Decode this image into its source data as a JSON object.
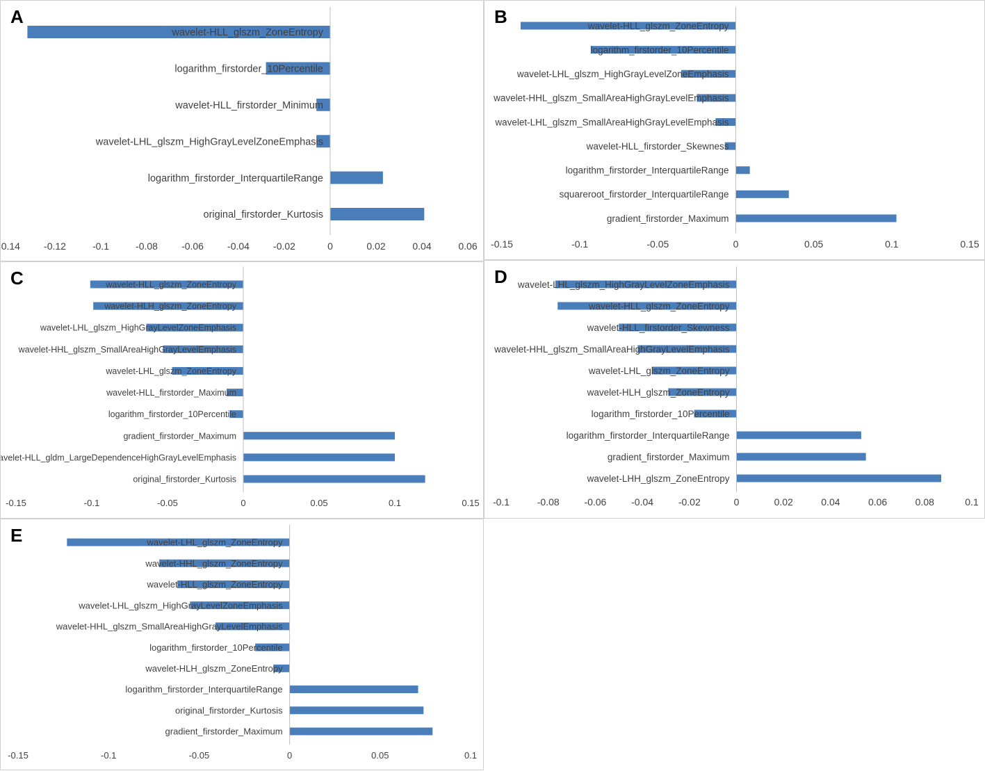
{
  "colors": {
    "bar": "#4a7ebb",
    "axis": "#bfbfbf",
    "text": "#404040"
  },
  "chart_data": [
    {
      "id": "A",
      "letter": "A",
      "type": "bar",
      "orientation": "horizontal",
      "xlim": [
        -0.14,
        0.06
      ],
      "xticks": [
        -0.14,
        -0.12,
        -0.1,
        -0.08,
        -0.06,
        -0.04,
        -0.02,
        0,
        0.02,
        0.04,
        0.06
      ],
      "tick_labels": [
        "-0.14",
        "-0.12",
        "-0.1",
        "-0.08",
        "-0.06",
        "-0.04",
        "-0.02",
        "0",
        "0.02",
        "0.04",
        "0.06"
      ],
      "categories": [
        "wavelet-HLL_glszm_ZoneEntropy",
        "logarithm_firstorder_10Percentile",
        "wavelet-HLL_firstorder_Minimum",
        "wavelet-LHL_glszm_HighGrayLevelZoneEmphasis",
        "logarithm_firstorder_InterquartileRange",
        "original_firstorder_Kurtosis"
      ],
      "values": [
        -0.132,
        -0.028,
        -0.006,
        -0.006,
        0.023,
        0.041
      ]
    },
    {
      "id": "B",
      "letter": "B",
      "type": "bar",
      "orientation": "horizontal",
      "xlim": [
        -0.15,
        0.15
      ],
      "xticks": [
        -0.15,
        -0.1,
        -0.05,
        0,
        0.05,
        0.1,
        0.15
      ],
      "tick_labels": [
        "-0.15",
        "-0.1",
        "-0.05",
        "0",
        "0.05",
        "0.1",
        "0.15"
      ],
      "categories": [
        "wavelet-HLL_glszm_ZoneEntropy",
        "logarithm_firstorder_10Percentile",
        "wavelet-LHL_glszm_HighGrayLevelZoneEmphasis",
        "wavelet-HHL_glszm_SmallAreaHighGrayLevelEmphasis",
        "wavelet-LHL_glszm_SmallAreaHighGrayLevelEmphasis",
        "wavelet-HLL_firstorder_Skewness",
        "logarithm_firstorder_InterquartileRange",
        "squareroot_firstorder_InterquartileRange",
        "gradient_firstorder_Maximum"
      ],
      "values": [
        -0.138,
        -0.093,
        -0.035,
        -0.025,
        -0.013,
        -0.007,
        0.009,
        0.034,
        0.103
      ]
    },
    {
      "id": "C",
      "letter": "C",
      "type": "bar",
      "orientation": "horizontal",
      "xlim": [
        -0.15,
        0.15
      ],
      "xticks": [
        -0.15,
        -0.1,
        -0.05,
        0,
        0.05,
        0.1,
        0.15
      ],
      "tick_labels": [
        "-0.15",
        "-0.1",
        "-0.05",
        "0",
        "0.05",
        "0.1",
        "0.15"
      ],
      "categories": [
        "wavelet-HLL_glszm_ZoneEntropy",
        "wavelet-HLH_glszm_ZoneEntropy",
        "wavelet-LHL_glszm_HighGrayLevelZoneEmphasis",
        "wavelet-HHL_glszm_SmallAreaHighGrayLevelEmphasis",
        "wavelet-LHL_glszm_ZoneEntropy",
        "wavelet-HLL_firstorder_Maximum",
        "logarithm_firstorder_10Percentile",
        "gradient_firstorder_Maximum",
        "wavelet-HLL_gldm_LargeDependenceHighGrayLevelEmphasis",
        "original_firstorder_Kurtosis"
      ],
      "values": [
        -0.101,
        -0.099,
        -0.064,
        -0.053,
        -0.047,
        -0.011,
        -0.009,
        0.1,
        0.1,
        0.12
      ]
    },
    {
      "id": "D",
      "letter": "D",
      "type": "bar",
      "orientation": "horizontal",
      "xlim": [
        -0.1,
        0.1
      ],
      "xticks": [
        -0.1,
        -0.08,
        -0.06,
        -0.04,
        -0.02,
        0,
        0.02,
        0.04,
        0.06,
        0.08,
        0.1
      ],
      "tick_labels": [
        "-0.1",
        "-0.08",
        "-0.06",
        "-0.04",
        "-0.02",
        "0",
        "0.02",
        "0.04",
        "0.06",
        "0.08",
        "0.1"
      ],
      "categories": [
        "wavelet-LHL_glszm_HighGrayLevelZoneEmphasis",
        "wavelet-HLL_glszm_ZoneEntropy",
        "wavelet-HLL_firstorder_Skewness",
        "wavelet-HHL_glszm_SmallAreaHighGrayLevelEmphasis",
        "wavelet-LHL_glszm_ZoneEntropy",
        "wavelet-HLH_glszm_ZoneEntropy",
        "logarithm_firstorder_10Percentile",
        "logarithm_firstorder_InterquartileRange",
        "gradient_firstorder_Maximum",
        "wavelet-LHH_glszm_ZoneEntropy"
      ],
      "values": [
        -0.077,
        -0.076,
        -0.05,
        -0.042,
        -0.036,
        -0.029,
        -0.018,
        0.053,
        0.055,
        0.087
      ]
    },
    {
      "id": "E",
      "letter": "E",
      "type": "bar",
      "orientation": "horizontal",
      "xlim": [
        -0.15,
        0.1
      ],
      "xticks": [
        -0.15,
        -0.1,
        -0.05,
        0,
        0.05,
        0.1
      ],
      "tick_labels": [
        "-0.15",
        "-0.1",
        "-0.05",
        "0",
        "0.05",
        "0.1"
      ],
      "categories": [
        "wavelet-LHL_glszm_ZoneEntropy",
        "wavelet-HHL_glszm_ZoneEntropy",
        "wavelet-HLL_glszm_ZoneEntropy",
        "wavelet-LHL_glszm_HighGrayLevelZoneEmphasis",
        "wavelet-HHL_glszm_SmallAreaHighGrayLevelEmphasis",
        "logarithm_firstorder_10Percentile",
        "wavelet-HLH_glszm_ZoneEntropy",
        "logarithm_firstorder_InterquartileRange",
        "original_firstorder_Kurtosis",
        "gradient_firstorder_Maximum"
      ],
      "values": [
        -0.123,
        -0.072,
        -0.062,
        -0.055,
        -0.041,
        -0.019,
        -0.009,
        0.071,
        0.074,
        0.079
      ]
    }
  ]
}
